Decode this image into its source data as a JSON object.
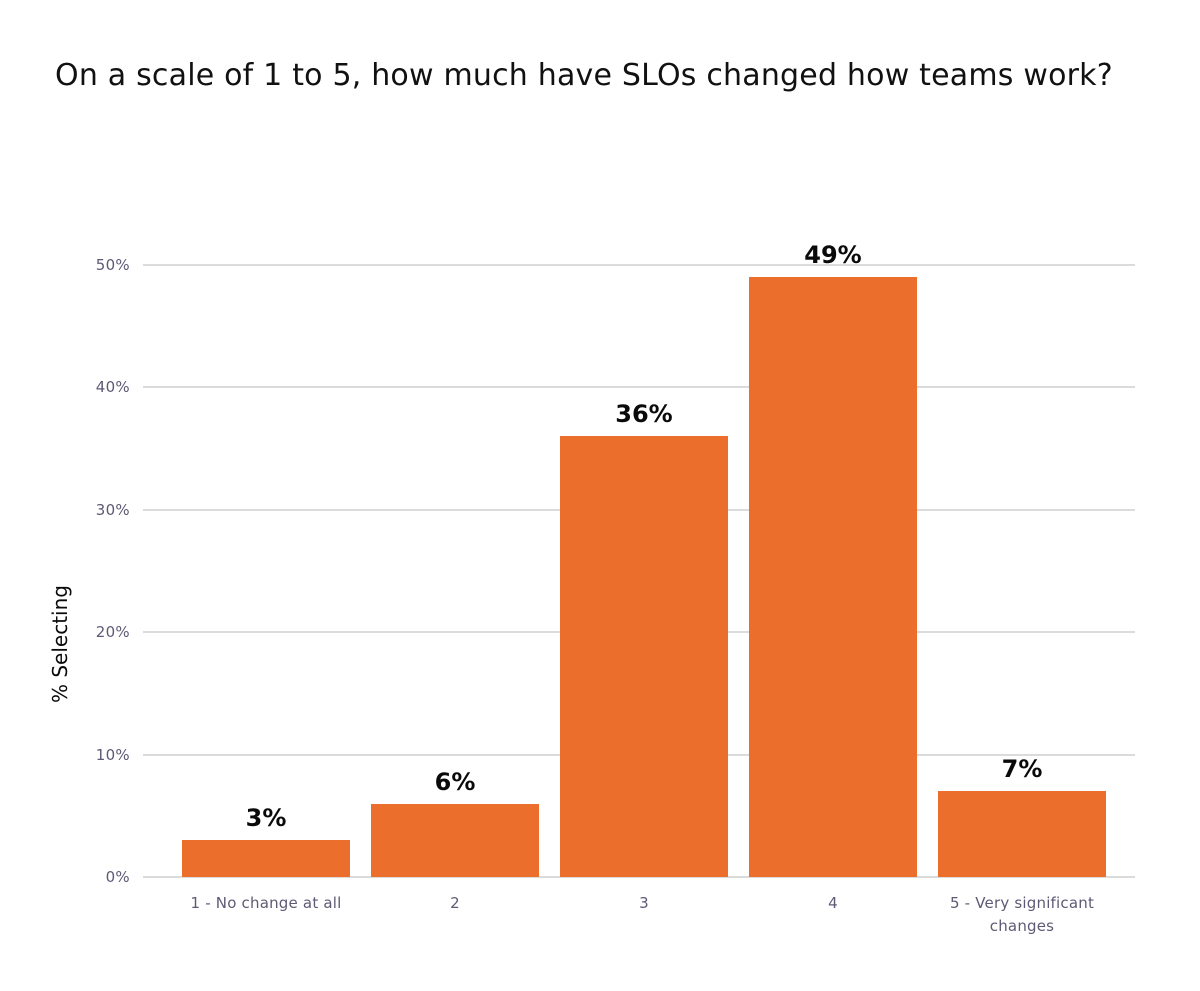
{
  "chart_data": {
    "type": "bar",
    "title": "On a scale of 1 to 5, how much have SLOs changed how teams work?",
    "xlabel": "",
    "ylabel": "% Selecting",
    "categories": [
      "1 - No change at all",
      "2",
      "3",
      "4",
      "5 - Very significant changes"
    ],
    "values": [
      3,
      6,
      36,
      49,
      7
    ],
    "value_labels": [
      "3%",
      "6%",
      "36%",
      "49%",
      "7%"
    ],
    "yticks": [
      0,
      10,
      20,
      30,
      40,
      50
    ],
    "ytick_labels": [
      "0%",
      "10%",
      "20%",
      "30%",
      "40%",
      "50%"
    ],
    "ylim": [
      0,
      52
    ],
    "grid": "horizontal",
    "legend_position": "none",
    "colors": {
      "bar": "#ec6e2d",
      "gridline": "#dbdbdb",
      "tick_label": "#5e5a75",
      "title": "#111111",
      "data_label": "#0a0a0a",
      "background": "#ffffff"
    }
  }
}
